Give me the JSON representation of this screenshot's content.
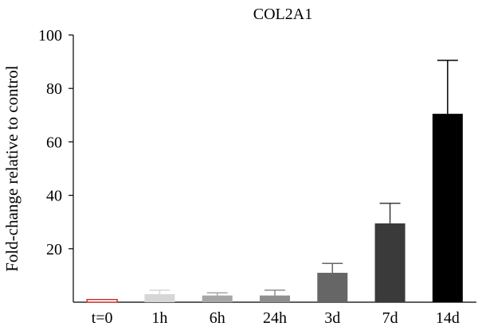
{
  "chart_data": {
    "type": "bar",
    "title": "COL2A1",
    "ylabel": "Fold-change relative to control",
    "xlabel": "",
    "categories": [
      "t=0",
      "1h",
      "6h",
      "24h",
      "3d",
      "7d",
      "14d"
    ],
    "values": [
      1,
      3,
      2.5,
      2.5,
      11,
      29.5,
      70.5
    ],
    "errors": [
      0,
      1.5,
      1,
      2,
      3.5,
      7.5,
      20
    ],
    "bar_colors": [
      "#ffffff",
      "#d6d6d6",
      "#a6a6a6",
      "#8e8e8e",
      "#666666",
      "#3a3a3a",
      "#000000"
    ],
    "bar_edge_colors": [
      "#d01c1c",
      "#d6d6d6",
      "#a6a6a6",
      "#8e8e8e",
      "#666666",
      "#3a3a3a",
      "#000000"
    ],
    "error_bar_colors": [
      "#d01c1c",
      "#d6d6d6",
      "#a6a6a6",
      "#8e8e8e",
      "#666666",
      "#3a3a3a",
      "#000000"
    ],
    "ylim": [
      0,
      100
    ],
    "yticks": [
      20,
      40,
      60,
      80,
      100
    ],
    "grid": false,
    "legend": "none"
  }
}
